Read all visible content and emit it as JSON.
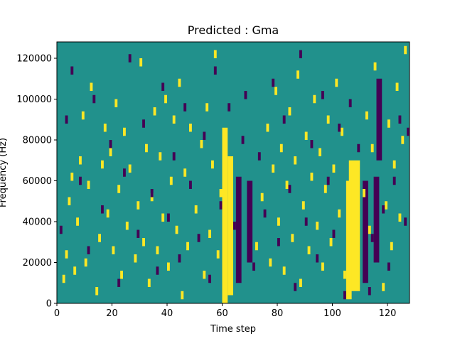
{
  "chart_data": {
    "type": "heatmap",
    "title": "Predicted : Gma",
    "xlabel": "Time step",
    "ylabel": "Frequency (Hz)",
    "xlim": [
      0,
      128
    ],
    "ylim": [
      0,
      128000
    ],
    "x_ticks": [
      0,
      20,
      40,
      60,
      80,
      100,
      120
    ],
    "y_ticks": [
      0,
      20000,
      40000,
      60000,
      80000,
      100000,
      120000
    ],
    "x_tick_labels": [
      "0",
      "20",
      "40",
      "60",
      "80",
      "100",
      "120"
    ],
    "y_tick_labels": [
      "0",
      "20000",
      "40000",
      "60000",
      "80000",
      "100000",
      "120000"
    ],
    "grid": false,
    "colors": {
      "background": "#21918c",
      "high": "#fde725",
      "low": "#440154"
    },
    "values_legend": {
      "background": 0,
      "high": 1,
      "low": -1
    },
    "cell_size": {
      "time": 1,
      "frequency": 2000
    },
    "bands": [
      {
        "value": 1,
        "time": [
          60,
          62
        ],
        "frequency": [
          0,
          86000
        ]
      },
      {
        "value": 1,
        "time": [
          62,
          64
        ],
        "frequency": [
          4000,
          72000
        ]
      },
      {
        "value": 1,
        "time": [
          106,
          110
        ],
        "frequency": [
          6000,
          70000
        ]
      },
      {
        "value": 1,
        "time": [
          105,
          107
        ],
        "frequency": [
          2000,
          60000
        ]
      },
      {
        "value": -1,
        "time": [
          65,
          67
        ],
        "frequency": [
          10000,
          62000
        ]
      },
      {
        "value": -1,
        "time": [
          69,
          71
        ],
        "frequency": [
          20000,
          60000
        ]
      },
      {
        "value": -1,
        "time": [
          111,
          113
        ],
        "frequency": [
          10000,
          60000
        ]
      },
      {
        "value": -1,
        "time": [
          115,
          117
        ],
        "frequency": [
          20000,
          62000
        ]
      },
      {
        "value": -1,
        "time": [
          116,
          118
        ],
        "frequency": [
          70000,
          110000
        ]
      }
    ],
    "cells": [
      [
        2,
        10000,
        1
      ],
      [
        3,
        22000,
        1
      ],
      [
        4,
        48000,
        1
      ],
      [
        5,
        60000,
        1
      ],
      [
        6,
        14000,
        1
      ],
      [
        7,
        38000,
        1
      ],
      [
        8,
        68000,
        1
      ],
      [
        9,
        90000,
        1
      ],
      [
        10,
        18000,
        1
      ],
      [
        11,
        56000,
        1
      ],
      [
        12,
        104000,
        1
      ],
      [
        14,
        4000,
        1
      ],
      [
        15,
        30000,
        1
      ],
      [
        16,
        66000,
        1
      ],
      [
        17,
        84000,
        1
      ],
      [
        18,
        42000,
        1
      ],
      [
        19,
        72000,
        1
      ],
      [
        20,
        24000,
        1
      ],
      [
        21,
        96000,
        1
      ],
      [
        22,
        54000,
        1
      ],
      [
        23,
        12000,
        1
      ],
      [
        24,
        82000,
        1
      ],
      [
        25,
        36000,
        1
      ],
      [
        26,
        64000,
        1
      ],
      [
        28,
        20000,
        1
      ],
      [
        29,
        46000,
        1
      ],
      [
        30,
        116000,
        1
      ],
      [
        31,
        28000,
        1
      ],
      [
        32,
        74000,
        1
      ],
      [
        33,
        8000,
        1
      ],
      [
        34,
        50000,
        1
      ],
      [
        35,
        92000,
        1
      ],
      [
        36,
        24000,
        1
      ],
      [
        37,
        70000,
        1
      ],
      [
        38,
        40000,
        1
      ],
      [
        39,
        98000,
        1
      ],
      [
        40,
        16000,
        1
      ],
      [
        41,
        58000,
        1
      ],
      [
        42,
        88000,
        1
      ],
      [
        43,
        34000,
        1
      ],
      [
        44,
        106000,
        1
      ],
      [
        45,
        2000,
        1
      ],
      [
        46,
        62000,
        1
      ],
      [
        47,
        26000,
        1
      ],
      [
        48,
        84000,
        1
      ],
      [
        50,
        44000,
        1
      ],
      [
        52,
        76000,
        1
      ],
      [
        53,
        12000,
        1
      ],
      [
        54,
        94000,
        1
      ],
      [
        55,
        32000,
        1
      ],
      [
        56,
        66000,
        1
      ],
      [
        57,
        120000,
        1
      ],
      [
        58,
        22000,
        1
      ],
      [
        59,
        52000,
        1
      ],
      [
        72,
        26000,
        1
      ],
      [
        74,
        50000,
        1
      ],
      [
        76,
        84000,
        1
      ],
      [
        77,
        18000,
        1
      ],
      [
        78,
        64000,
        1
      ],
      [
        79,
        102000,
        1
      ],
      [
        80,
        38000,
        1
      ],
      [
        81,
        74000,
        1
      ],
      [
        82,
        14000,
        1
      ],
      [
        83,
        56000,
        1
      ],
      [
        84,
        92000,
        1
      ],
      [
        85,
        30000,
        1
      ],
      [
        86,
        68000,
        1
      ],
      [
        87,
        110000,
        1
      ],
      [
        88,
        8000,
        1
      ],
      [
        89,
        46000,
        1
      ],
      [
        90,
        80000,
        1
      ],
      [
        91,
        24000,
        1
      ],
      [
        92,
        60000,
        1
      ],
      [
        93,
        98000,
        1
      ],
      [
        94,
        36000,
        1
      ],
      [
        95,
        72000,
        1
      ],
      [
        96,
        16000,
        1
      ],
      [
        97,
        54000,
        1
      ],
      [
        98,
        88000,
        1
      ],
      [
        99,
        28000,
        1
      ],
      [
        100,
        64000,
        1
      ],
      [
        101,
        106000,
        1
      ],
      [
        102,
        42000,
        1
      ],
      [
        103,
        82000,
        1
      ],
      [
        104,
        12000,
        1
      ],
      [
        111,
        52000,
        1
      ],
      [
        112,
        90000,
        1
      ],
      [
        113,
        34000,
        1
      ],
      [
        114,
        74000,
        1
      ],
      [
        115,
        114000,
        1
      ],
      [
        118,
        6000,
        1
      ],
      [
        119,
        46000,
        1
      ],
      [
        120,
        86000,
        1
      ],
      [
        121,
        26000,
        1
      ],
      [
        122,
        66000,
        1
      ],
      [
        123,
        104000,
        1
      ],
      [
        124,
        40000,
        1
      ],
      [
        125,
        78000,
        1
      ],
      [
        126,
        122000,
        1
      ],
      [
        1,
        34000,
        -1
      ],
      [
        3,
        88000,
        -1
      ],
      [
        5,
        112000,
        -1
      ],
      [
        8,
        58000,
        -1
      ],
      [
        11,
        24000,
        -1
      ],
      [
        13,
        98000,
        -1
      ],
      [
        16,
        44000,
        -1
      ],
      [
        19,
        76000,
        -1
      ],
      [
        22,
        8000,
        -1
      ],
      [
        24,
        62000,
        -1
      ],
      [
        26,
        118000,
        -1
      ],
      [
        29,
        32000,
        -1
      ],
      [
        31,
        86000,
        -1
      ],
      [
        34,
        52000,
        -1
      ],
      [
        36,
        14000,
        -1
      ],
      [
        38,
        104000,
        -1
      ],
      [
        40,
        40000,
        -1
      ],
      [
        42,
        70000,
        -1
      ],
      [
        44,
        20000,
        -1
      ],
      [
        46,
        94000,
        -1
      ],
      [
        48,
        56000,
        -1
      ],
      [
        51,
        30000,
        -1
      ],
      [
        53,
        80000,
        -1
      ],
      [
        55,
        10000,
        -1
      ],
      [
        57,
        112000,
        -1
      ],
      [
        59,
        46000,
        -1
      ],
      [
        62,
        94000,
        -1
      ],
      [
        64,
        36000,
        -1
      ],
      [
        67,
        78000,
        -1
      ],
      [
        68,
        100000,
        -1
      ],
      [
        71,
        16000,
        -1
      ],
      [
        73,
        70000,
        -1
      ],
      [
        75,
        42000,
        -1
      ],
      [
        78,
        106000,
        -1
      ],
      [
        80,
        28000,
        -1
      ],
      [
        82,
        88000,
        -1
      ],
      [
        84,
        54000,
        -1
      ],
      [
        86,
        6000,
        -1
      ],
      [
        88,
        120000,
        -1
      ],
      [
        90,
        38000,
        -1
      ],
      [
        92,
        76000,
        -1
      ],
      [
        94,
        20000,
        -1
      ],
      [
        96,
        100000,
        -1
      ],
      [
        98,
        58000,
        -1
      ],
      [
        100,
        32000,
        -1
      ],
      [
        102,
        84000,
        -1
      ],
      [
        104,
        2000,
        -1
      ],
      [
        106,
        96000,
        -1
      ],
      [
        109,
        74000,
        -1
      ],
      [
        113,
        4000,
        -1
      ],
      [
        114,
        30000,
        -1
      ],
      [
        118,
        44000,
        -1
      ],
      [
        120,
        16000,
        -1
      ],
      [
        122,
        58000,
        -1
      ],
      [
        124,
        88000,
        -1
      ],
      [
        126,
        38000,
        -1
      ],
      [
        127,
        82000,
        -1
      ]
    ]
  }
}
